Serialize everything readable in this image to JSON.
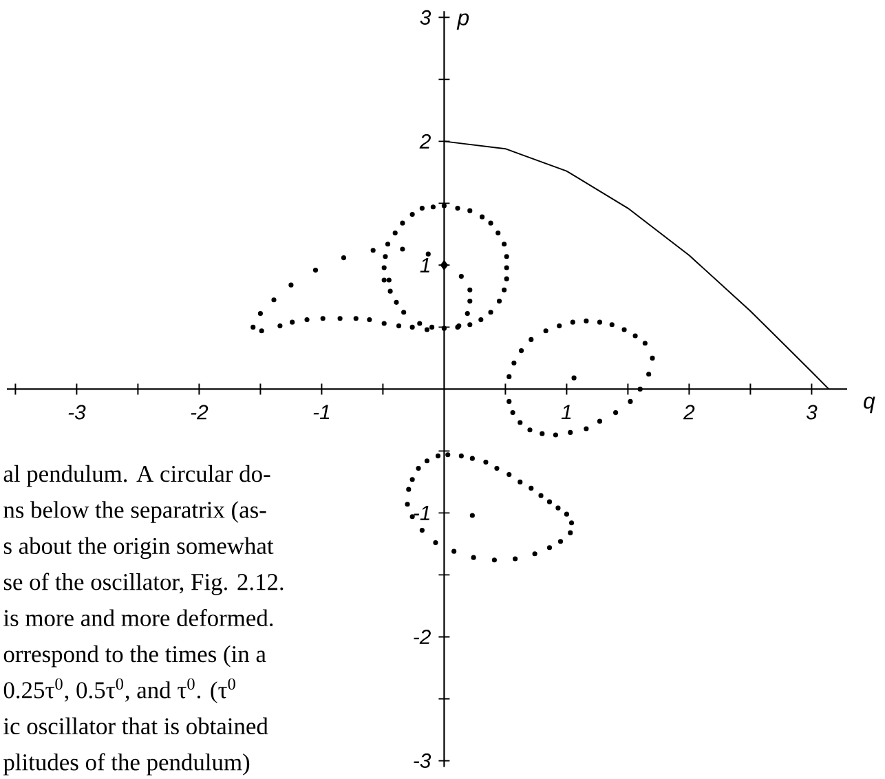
{
  "chart_data": {
    "type": "scatter",
    "xlabel": "q",
    "ylabel": "p",
    "marker": "circle",
    "xlim": [
      -3.57,
      3.29
    ],
    "ylim": [
      -3.05,
      3.05
    ],
    "xticks": [
      {
        "value": -3.5,
        "label": null
      },
      -3,
      {
        "value": -2.5,
        "label": null
      },
      -2,
      {
        "value": -1.5,
        "label": null
      },
      -1,
      {
        "value": -0.5,
        "label": null
      },
      {
        "value": 0.5,
        "label": null
      },
      1,
      {
        "value": 1.5,
        "label": null
      },
      2,
      {
        "value": 2.5,
        "label": null
      },
      3
    ],
    "yticks": [
      -3,
      {
        "value": -2.5,
        "label": null
      },
      -2,
      {
        "value": -1.5,
        "label": null
      },
      -1,
      {
        "value": -0.5,
        "label": null
      },
      {
        "value": 0.5,
        "label": null
      },
      1,
      {
        "value": 1.5,
        "label": null
      },
      2,
      {
        "value": 2.5,
        "label": null
      },
      3
    ],
    "series": [
      {
        "type": "line",
        "marker": "none",
        "line_style": "solid",
        "color": "#000000",
        "x": [
          0,
          0.5,
          1,
          1.5,
          2,
          2.5,
          3,
          3.14
        ],
        "values": [
          2,
          1.94,
          1.76,
          1.46,
          1.08,
          0.63,
          0.14,
          0
        ]
      },
      {
        "color": "#000000",
        "x": [
          0,
          0.11,
          0.21,
          0.31,
          0.38,
          0.44,
          0.49,
          0.51,
          0.51,
          0.51,
          0.49,
          0.45,
          0.38,
          0.3,
          0.21,
          0.11,
          0,
          -0.1,
          -0.2,
          -0.33,
          -0.39,
          -0.44,
          -0.49,
          -0.49,
          -0.48,
          -0.46,
          -0.4,
          -0.34,
          -0.26,
          -0.18,
          -0.09
        ],
        "values": [
          1.48,
          1.46,
          1.44,
          1.39,
          1.34,
          1.26,
          1.17,
          1.07,
          0.98,
          0.89,
          0.8,
          0.71,
          0.62,
          0.56,
          0.52,
          0.5,
          0.49,
          0.5,
          0.53,
          0.62,
          0.7,
          0.79,
          0.88,
          0.98,
          1.07,
          1.17,
          1.26,
          1.34,
          1.41,
          1.46,
          1.47
        ]
      },
      {
        "color": "#000000",
        "x": [
          -0.34,
          -0.58,
          -0.82,
          -1.05,
          -1.25,
          -1.39,
          -1.5,
          -1.56,
          -1.49,
          -1.34,
          -1.24,
          -1.12,
          -0.99,
          -0.85,
          -0.72,
          -0.61,
          -0.49,
          -0.37,
          -0.26,
          -0.14,
          0.12,
          0.19,
          0.21,
          0.21,
          0.14,
          -0.13
        ],
        "values": [
          1.13,
          1.12,
          1.06,
          0.96,
          0.84,
          0.72,
          0.61,
          0.5,
          0.47,
          0.51,
          0.54,
          0.56,
          0.57,
          0.57,
          0.57,
          0.56,
          0.53,
          0.51,
          0.5,
          0.48,
          0.51,
          0.61,
          0.71,
          0.8,
          0.91,
          1.09
        ]
      },
      {
        "color": "#000000",
        "x": [
          0.53,
          0.57,
          0.63,
          0.71,
          0.83,
          0.94,
          1.05,
          1.16,
          1.27,
          1.37,
          1.47,
          1.56,
          1.64,
          1.7,
          1.67,
          1.6,
          1.52,
          1.4,
          1.27,
          1.16,
          1.03,
          0.91,
          0.8,
          0.7,
          0.62,
          0.56,
          0.53
        ],
        "values": [
          0.1,
          0.21,
          0.31,
          0.4,
          0.47,
          0.51,
          0.54,
          0.55,
          0.54,
          0.52,
          0.48,
          0.43,
          0.37,
          0.25,
          0.12,
          0.0,
          -0.1,
          -0.19,
          -0.26,
          -0.32,
          -0.35,
          -0.37,
          -0.36,
          -0.33,
          -0.27,
          -0.19,
          -0.1
        ]
      },
      {
        "color": "#000000",
        "x": [
          0.03,
          0.14,
          0.23,
          0.34,
          0.43,
          0.53,
          0.62,
          0.71,
          0.79,
          0.86,
          0.93,
          1.0,
          1.04,
          1.03,
          0.95,
          0.86,
          0.74,
          0.58,
          0.41,
          0.24,
          0.08,
          -0.07,
          -0.18,
          -0.26,
          -0.3,
          -0.29,
          -0.26,
          -0.21,
          -0.14,
          -0.05
        ],
        "values": [
          -0.53,
          -0.54,
          -0.56,
          -0.59,
          -0.64,
          -0.69,
          -0.75,
          -0.8,
          -0.86,
          -0.91,
          -0.96,
          -1.01,
          -1.08,
          -1.16,
          -1.23,
          -1.28,
          -1.33,
          -1.37,
          -1.38,
          -1.36,
          -1.31,
          -1.24,
          -1.14,
          -1.03,
          -0.93,
          -0.81,
          -0.73,
          -0.64,
          -0.58,
          -0.54
        ]
      },
      {
        "color": "#000000",
        "x": [
          -0.45,
          1.06,
          0.23
        ],
        "values": [
          0.88,
          0.09,
          -1.02
        ]
      },
      {
        "marker": "diamond",
        "color": "#000000",
        "x": [
          0
        ],
        "values": [
          1
        ]
      }
    ],
    "annotations": [
      "al pendulum. A circular do-",
      "ns below the separatrix (as-",
      "s about the origin somewhat",
      "se of the oscillator, Fig. 2.12.",
      "is more and more deformed.",
      "orrespond to the times (in a",
      "0.25τ$^{0}$, 0.5τ$^{0}$, and τ$^{0}$. (τ$^{0}$",
      "ic oscillator that is obtained",
      "plitudes of the pendulum)"
    ]
  }
}
